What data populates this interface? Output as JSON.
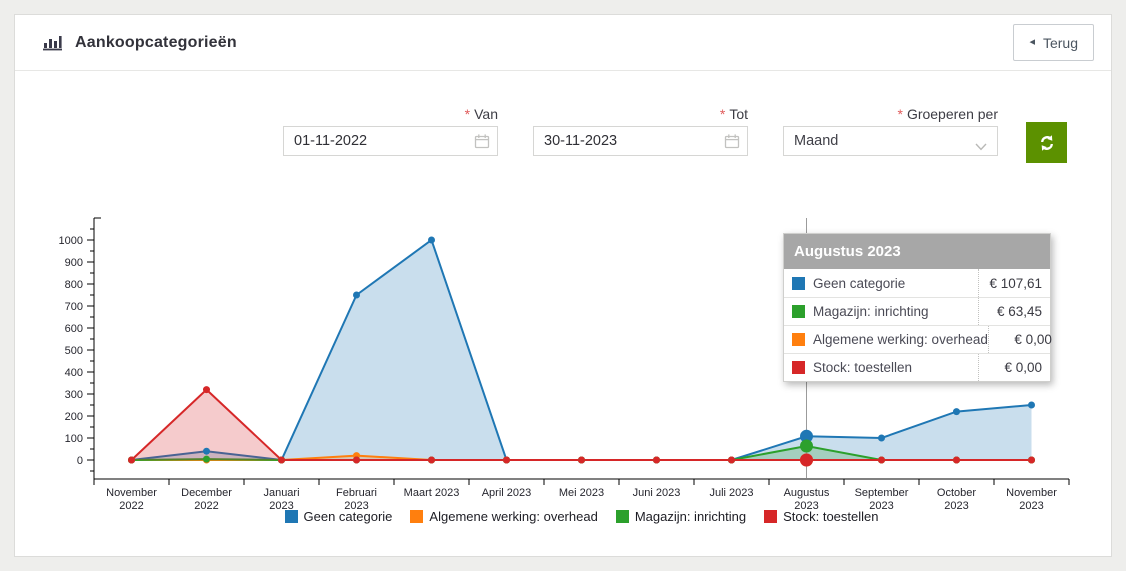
{
  "header": {
    "title": "Aankoopcategorieën",
    "back_label": "Terug",
    "back_icon": "◂"
  },
  "filters": {
    "required_marker": "*",
    "van": {
      "label": "Van",
      "value": "01-11-2022"
    },
    "tot": {
      "label": "Tot",
      "value": "30-11-2023"
    },
    "groeperen": {
      "label": "Groeperen per",
      "value": "Maand"
    }
  },
  "chart_data": {
    "type": "area",
    "title": "",
    "xlabel": "",
    "ylabel": "",
    "ylim": [
      0,
      1000
    ],
    "y_ticks": [
      0,
      100,
      200,
      300,
      400,
      500,
      600,
      700,
      800,
      900,
      1000
    ],
    "grid": false,
    "legend_position": "bottom",
    "categories": [
      "November 2022",
      "December 2022",
      "Januari 2023",
      "Februari 2023",
      "Maart 2023",
      "April 2023",
      "Mei 2023",
      "Juni 2023",
      "Juli 2023",
      "Augustus 2023",
      "September 2023",
      "October 2023",
      "November 2023"
    ],
    "category_label_lines": [
      [
        "November",
        "2022"
      ],
      [
        "December",
        "2022"
      ],
      [
        "Januari",
        "2023"
      ],
      [
        "Februari",
        "2023"
      ],
      [
        "Maart 2023"
      ],
      [
        "April 2023"
      ],
      [
        "Mei 2023"
      ],
      [
        "Juni 2023"
      ],
      [
        "Juli 2023"
      ],
      [
        "Augustus",
        "2023"
      ],
      [
        "September",
        "2023"
      ],
      [
        "October",
        "2023"
      ],
      [
        "November",
        "2023"
      ]
    ],
    "series": [
      {
        "name": "Geen categorie",
        "color": "#1f77b4",
        "values": [
          0,
          40,
          0,
          750,
          1000,
          0,
          0,
          0,
          0,
          107.61,
          100,
          220,
          250
        ]
      },
      {
        "name": "Algemene werking: overhead",
        "color": "#ff7f0e",
        "values": [
          0,
          0,
          0,
          20,
          0,
          0,
          0,
          0,
          0,
          0,
          0,
          0,
          0
        ]
      },
      {
        "name": "Magazijn: inrichting",
        "color": "#2ca02c",
        "values": [
          0,
          4,
          0,
          0,
          0,
          0,
          0,
          0,
          0,
          63.45,
          0,
          0,
          0
        ]
      },
      {
        "name": "Stock: toestellen",
        "color": "#d62728",
        "values": [
          0,
          320,
          0,
          0,
          0,
          0,
          0,
          0,
          0,
          0,
          0,
          0,
          0
        ]
      }
    ],
    "legend_order": [
      "Geen categorie",
      "Algemene werking: overhead",
      "Magazijn: inrichting",
      "Stock: toestellen"
    ],
    "hover": {
      "category": "Augustus 2023",
      "index": 9
    }
  },
  "tooltip": {
    "title": "Augustus 2023",
    "rows": [
      {
        "label": "Geen categorie",
        "value": "€ 107,61",
        "color": "#1f77b4"
      },
      {
        "label": "Magazijn: inrichting",
        "value": "€ 63,45",
        "color": "#2ca02c"
      },
      {
        "label": "Algemene werking: overhead",
        "value": "€ 0,00",
        "color": "#ff7f0e"
      },
      {
        "label": "Stock: toestellen",
        "value": "€ 0,00",
        "color": "#d62728"
      }
    ]
  }
}
